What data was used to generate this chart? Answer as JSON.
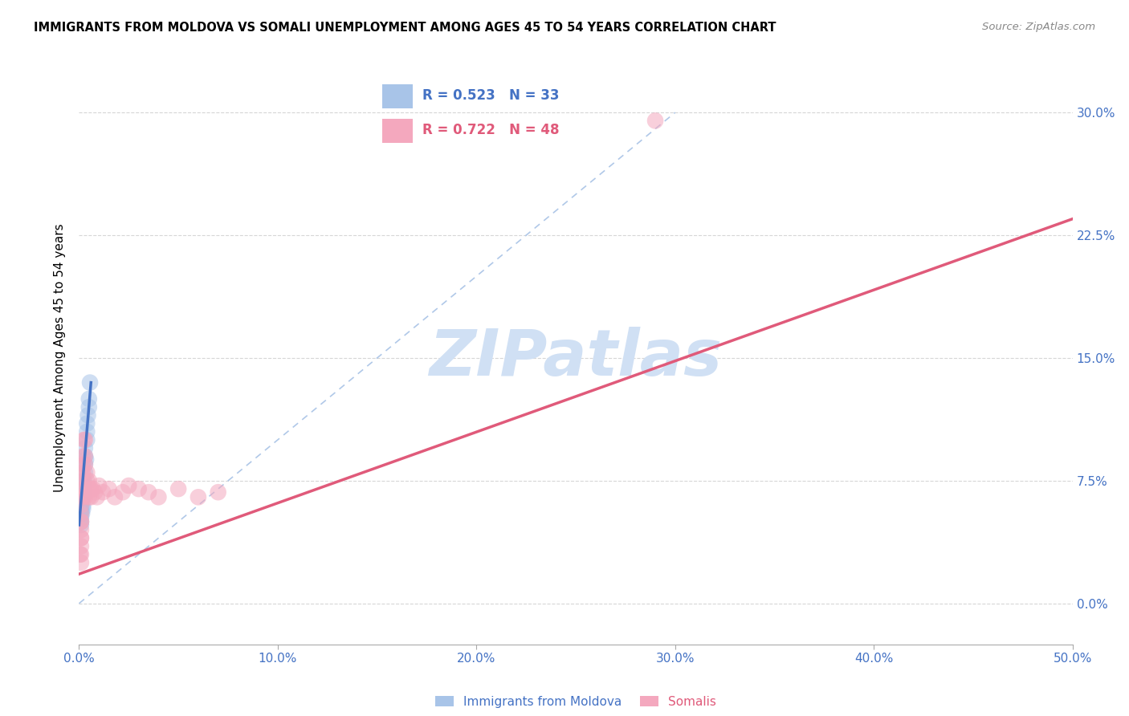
{
  "title": "IMMIGRANTS FROM MOLDOVA VS SOMALI UNEMPLOYMENT AMONG AGES 45 TO 54 YEARS CORRELATION CHART",
  "source": "Source: ZipAtlas.com",
  "ylabel_label": "Unemployment Among Ages 45 to 54 years",
  "legend_label1": "Immigrants from Moldova",
  "legend_label2": "Somalis",
  "R1": "0.523",
  "N1": "33",
  "R2": "0.722",
  "N2": "48",
  "color_blue": "#a8c4e8",
  "color_pink": "#f4a8be",
  "line_blue": "#4472c4",
  "line_pink": "#e05a7a",
  "ref_line_color": "#b0c8e8",
  "watermark": "ZIPatlas",
  "watermark_color": "#d0e0f4",
  "xlim": [
    0.0,
    0.5
  ],
  "ylim": [
    -0.025,
    0.325
  ],
  "x_tick_vals": [
    0.0,
    0.1,
    0.2,
    0.3,
    0.4,
    0.5
  ],
  "x_tick_labels": [
    "0.0%",
    "10.0%",
    "20.0%",
    "30.0%",
    "40.0%",
    "50.0%"
  ],
  "y_tick_vals": [
    0.0,
    0.075,
    0.15,
    0.225,
    0.3
  ],
  "y_tick_labels": [
    "0.0%",
    "7.5%",
    "15.0%",
    "22.5%",
    "30.0%"
  ],
  "moldova_x": [
    0.0005,
    0.001,
    0.001,
    0.001,
    0.001,
    0.001,
    0.001,
    0.001,
    0.001,
    0.001,
    0.0015,
    0.0015,
    0.0015,
    0.002,
    0.002,
    0.002,
    0.002,
    0.002,
    0.002,
    0.002,
    0.0025,
    0.003,
    0.003,
    0.003,
    0.003,
    0.0035,
    0.004,
    0.004,
    0.004,
    0.0045,
    0.005,
    0.005,
    0.0055
  ],
  "moldova_y": [
    0.055,
    0.06,
    0.055,
    0.05,
    0.065,
    0.06,
    0.058,
    0.052,
    0.048,
    0.057,
    0.065,
    0.07,
    0.055,
    0.07,
    0.065,
    0.075,
    0.06,
    0.058,
    0.068,
    0.072,
    0.075,
    0.08,
    0.085,
    0.09,
    0.095,
    0.088,
    0.1,
    0.11,
    0.105,
    0.115,
    0.12,
    0.125,
    0.135
  ],
  "somali_x": [
    0.0005,
    0.001,
    0.001,
    0.001,
    0.001,
    0.001,
    0.001,
    0.001,
    0.001,
    0.001,
    0.001,
    0.001,
    0.0015,
    0.0015,
    0.002,
    0.002,
    0.002,
    0.002,
    0.002,
    0.002,
    0.0025,
    0.003,
    0.003,
    0.003,
    0.003,
    0.004,
    0.004,
    0.005,
    0.005,
    0.005,
    0.006,
    0.006,
    0.007,
    0.008,
    0.009,
    0.01,
    0.012,
    0.015,
    0.018,
    0.022,
    0.025,
    0.03,
    0.035,
    0.04,
    0.05,
    0.06,
    0.07,
    0.29
  ],
  "somali_y": [
    0.03,
    0.04,
    0.03,
    0.025,
    0.05,
    0.04,
    0.035,
    0.045,
    0.055,
    0.06,
    0.065,
    0.05,
    0.07,
    0.08,
    0.07,
    0.08,
    0.085,
    0.065,
    0.075,
    0.09,
    0.1,
    0.085,
    0.09,
    0.1,
    0.065,
    0.075,
    0.08,
    0.065,
    0.07,
    0.075,
    0.07,
    0.065,
    0.07,
    0.068,
    0.065,
    0.072,
    0.068,
    0.07,
    0.065,
    0.068,
    0.072,
    0.07,
    0.068,
    0.065,
    0.07,
    0.065,
    0.068,
    0.295
  ],
  "moldova_line_x": [
    0.0,
    0.006
  ],
  "moldova_line_y_start": 0.048,
  "moldova_line_y_end": 0.135,
  "somali_line_x": [
    0.0,
    0.5
  ],
  "somali_line_y_start": 0.018,
  "somali_line_y_end": 0.235,
  "ref_line_x": [
    0.0,
    0.3
  ],
  "ref_line_y": [
    0.0,
    0.3
  ]
}
